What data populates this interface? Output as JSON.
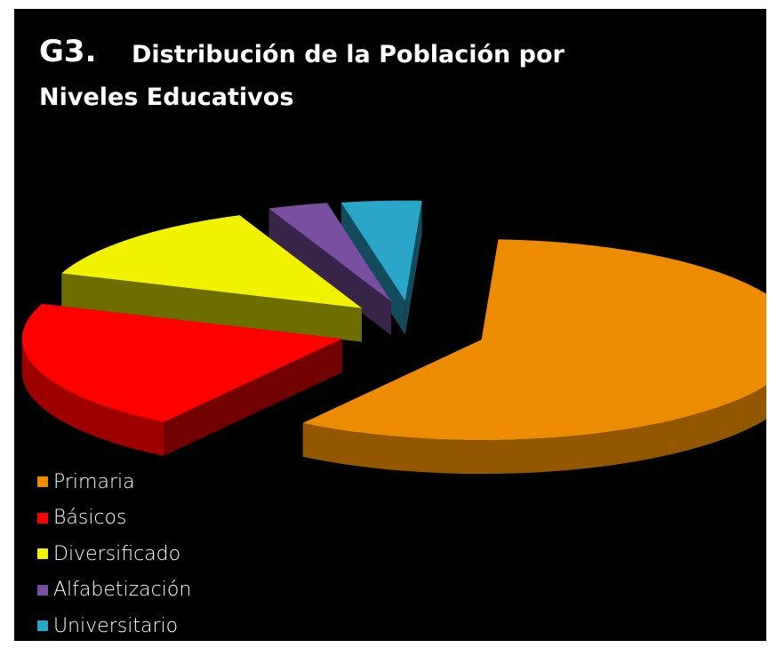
{
  "title": {
    "prefix": "G3.",
    "line1": "Distribución de la Población por",
    "line2": "Niveles Educativos"
  },
  "chart_data": {
    "type": "pie",
    "style": "3d-exploded",
    "categories": [
      "Primaria",
      "Básicos",
      "Diversificado",
      "Alfabetización",
      "Universitario"
    ],
    "values": [
      58,
      21,
      13,
      3,
      4
    ],
    "colors": [
      "#ed8c00",
      "#ff0000",
      "#f2f200",
      "#7b4fa0",
      "#2aa6c8"
    ],
    "legend_position": "bottom-left"
  },
  "legend": {
    "items": [
      {
        "label": "Primaria",
        "color": "#ed8c00"
      },
      {
        "label": "Básicos",
        "color": "#ff0000"
      },
      {
        "label": "Diversificado",
        "color": "#f2f200"
      },
      {
        "label": "Alfabetización",
        "color": "#7b4fa0"
      },
      {
        "label": "Universitario",
        "color": "#2aa6c8"
      }
    ]
  }
}
